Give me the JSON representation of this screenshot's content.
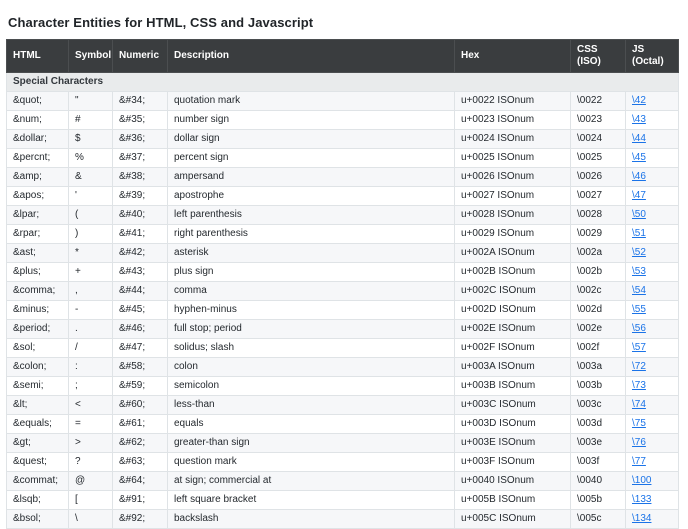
{
  "page": {
    "title": "Character Entities for HTML, CSS and Javascript"
  },
  "colors": {
    "header_bg": "#3a3d3f",
    "header_text": "#ffffff",
    "section_bg": "#e9ebec",
    "stripe_bg": "#f6f7f9",
    "border": "#dfe3e6",
    "link": "#1a73e8"
  },
  "table": {
    "headers": [
      {
        "label": "HTML"
      },
      {
        "label": "Symbol"
      },
      {
        "label": "Numeric"
      },
      {
        "label": "Description"
      },
      {
        "label": "Hex"
      },
      {
        "label": "CSS (ISO)"
      },
      {
        "label": "JS (Octal)"
      }
    ],
    "section_label": "Special Characters",
    "rows": [
      {
        "html": "&quot;",
        "symbol": "\"",
        "numeric": "&#34;",
        "description": "quotation mark",
        "hex": "u+0022 ISOnum",
        "css": "\\0022",
        "js": "\\42"
      },
      {
        "html": "&num;",
        "symbol": "#",
        "numeric": "&#35;",
        "description": "number sign",
        "hex": "u+0023 ISOnum",
        "css": "\\0023",
        "js": "\\43"
      },
      {
        "html": "&dollar;",
        "symbol": "$",
        "numeric": "&#36;",
        "description": "dollar sign",
        "hex": "u+0024 ISOnum",
        "css": "\\0024",
        "js": "\\44"
      },
      {
        "html": "&percnt;",
        "symbol": "%",
        "numeric": "&#37;",
        "description": "percent sign",
        "hex": "u+0025 ISOnum",
        "css": "\\0025",
        "js": "\\45"
      },
      {
        "html": "&amp;",
        "symbol": "&",
        "numeric": "&#38;",
        "description": "ampersand",
        "hex": "u+0026 ISOnum",
        "css": "\\0026",
        "js": "\\46"
      },
      {
        "html": "&apos;",
        "symbol": "'",
        "numeric": "&#39;",
        "description": "apostrophe",
        "hex": "u+0027 ISOnum",
        "css": "\\0027",
        "js": "\\47"
      },
      {
        "html": "&lpar;",
        "symbol": "(",
        "numeric": "&#40;",
        "description": "left parenthesis",
        "hex": "u+0028 ISOnum",
        "css": "\\0028",
        "js": "\\50"
      },
      {
        "html": "&rpar;",
        "symbol": ")",
        "numeric": "&#41;",
        "description": "right parenthesis",
        "hex": "u+0029 ISOnum",
        "css": "\\0029",
        "js": "\\51"
      },
      {
        "html": "&ast;",
        "symbol": "*",
        "numeric": "&#42;",
        "description": "asterisk",
        "hex": "u+002A ISOnum",
        "css": "\\002a",
        "js": "\\52"
      },
      {
        "html": "&plus;",
        "symbol": "+",
        "numeric": "&#43;",
        "description": "plus sign",
        "hex": "u+002B ISOnum",
        "css": "\\002b",
        "js": "\\53"
      },
      {
        "html": "&comma;",
        "symbol": ",",
        "numeric": "&#44;",
        "description": "comma",
        "hex": "u+002C ISOnum",
        "css": "\\002c",
        "js": "\\54"
      },
      {
        "html": "&minus;",
        "symbol": "-",
        "numeric": "&#45;",
        "description": "hyphen-minus",
        "hex": "u+002D ISOnum",
        "css": "\\002d",
        "js": "\\55"
      },
      {
        "html": "&period;",
        "symbol": ".",
        "numeric": "&#46;",
        "description": "full stop; period",
        "hex": "u+002E ISOnum",
        "css": "\\002e",
        "js": "\\56"
      },
      {
        "html": "&sol;",
        "symbol": "/",
        "numeric": "&#47;",
        "description": "solidus; slash",
        "hex": "u+002F ISOnum",
        "css": "\\002f",
        "js": "\\57"
      },
      {
        "html": "&colon;",
        "symbol": ":",
        "numeric": "&#58;",
        "description": "colon",
        "hex": "u+003A ISOnum",
        "css": "\\003a",
        "js": "\\72"
      },
      {
        "html": "&semi;",
        "symbol": ";",
        "numeric": "&#59;",
        "description": "semicolon",
        "hex": "u+003B ISOnum",
        "css": "\\003b",
        "js": "\\73"
      },
      {
        "html": "&lt;",
        "symbol": "<",
        "numeric": "&#60;",
        "description": "less-than",
        "hex": "u+003C ISOnum",
        "css": "\\003c",
        "js": "\\74"
      },
      {
        "html": "&equals;",
        "symbol": "=",
        "numeric": "&#61;",
        "description": "equals",
        "hex": "u+003D ISOnum",
        "css": "\\003d",
        "js": "\\75"
      },
      {
        "html": "&gt;",
        "symbol": ">",
        "numeric": "&#62;",
        "description": "greater-than sign",
        "hex": "u+003E ISOnum",
        "css": "\\003e",
        "js": "\\76"
      },
      {
        "html": "&quest;",
        "symbol": "?",
        "numeric": "&#63;",
        "description": "question mark",
        "hex": "u+003F ISOnum",
        "css": "\\003f",
        "js": "\\77"
      },
      {
        "html": "&commat;",
        "symbol": "@",
        "numeric": "&#64;",
        "description": "at sign; commercial at",
        "hex": "u+0040 ISOnum",
        "css": "\\0040",
        "js": "\\100"
      },
      {
        "html": "&lsqb;",
        "symbol": "[",
        "numeric": "&#91;",
        "description": "left square bracket",
        "hex": "u+005B ISOnum",
        "css": "\\005b",
        "js": "\\133"
      },
      {
        "html": "&bsol;",
        "symbol": "\\",
        "numeric": "&#92;",
        "description": "backslash",
        "hex": "u+005C ISOnum",
        "css": "\\005c",
        "js": "\\134"
      }
    ]
  }
}
